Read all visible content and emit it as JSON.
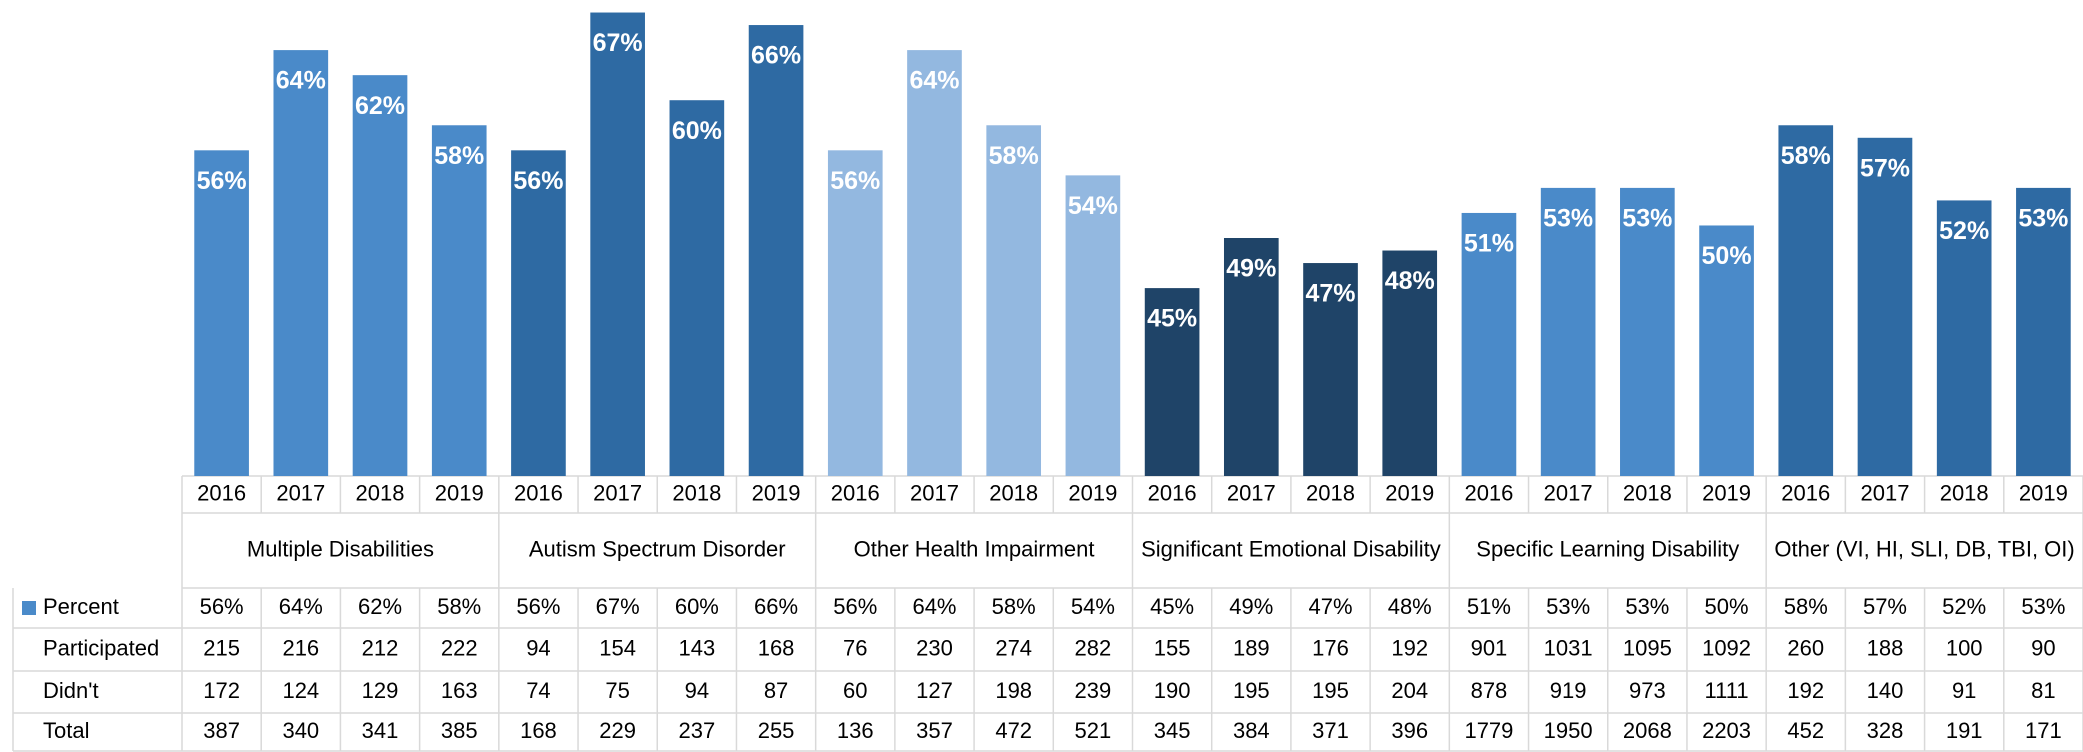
{
  "chart_data": {
    "type": "bar",
    "ylim": [
      30,
      68
    ],
    "groups": [
      {
        "name": "Multiple Disabilities",
        "color": "#4a8ac9"
      },
      {
        "name": "Autism Spectrum Disorder",
        "color": "#2e6aa3"
      },
      {
        "name": "Other Health Impairment",
        "color": "#93b8e0"
      },
      {
        "name": "Significant Emotional Disability",
        "color": "#1f4468"
      },
      {
        "name": "Specific Learning Disability",
        "color": "#4a8ac9"
      },
      {
        "name": "Other (VI, HI, SLI, DB, TBI, OI)",
        "color": "#2e6aa3"
      }
    ],
    "categories": [
      "2016",
      "2017",
      "2018",
      "2019",
      "2016",
      "2017",
      "2018",
      "2019",
      "2016",
      "2017",
      "2018",
      "2019",
      "2016",
      "2017",
      "2018",
      "2019",
      "2016",
      "2017",
      "2018",
      "2019",
      "2016",
      "2017",
      "2018",
      "2019"
    ],
    "series": [
      {
        "name": "Percent",
        "color": "#4a8ac9",
        "values": [
          56,
          64,
          62,
          58,
          56,
          67,
          60,
          66,
          56,
          64,
          58,
          54,
          45,
          49,
          47,
          48,
          51,
          53,
          53,
          50,
          58,
          57,
          52,
          53
        ],
        "value_labels": [
          "56%",
          "64%",
          "62%",
          "58%",
          "56%",
          "67%",
          "60%",
          "66%",
          "56%",
          "64%",
          "58%",
          "54%",
          "45%",
          "49%",
          "47%",
          "48%",
          "51%",
          "53%",
          "53%",
          "50%",
          "58%",
          "57%",
          "52%",
          "53%"
        ]
      }
    ]
  },
  "table": {
    "rows": [
      {
        "label": "Participated",
        "values": [
          215,
          216,
          212,
          222,
          94,
          154,
          143,
          168,
          76,
          230,
          274,
          282,
          155,
          189,
          176,
          192,
          901,
          1031,
          1095,
          1092,
          260,
          188,
          100,
          90
        ]
      },
      {
        "label": "Didn't",
        "values": [
          172,
          124,
          129,
          163,
          74,
          75,
          94,
          87,
          60,
          127,
          198,
          239,
          190,
          195,
          195,
          204,
          878,
          919,
          973,
          1111,
          192,
          140,
          91,
          81
        ]
      },
      {
        "label": "Total",
        "values": [
          387,
          340,
          341,
          385,
          168,
          229,
          237,
          255,
          136,
          357,
          472,
          521,
          345,
          384,
          371,
          396,
          1779,
          1950,
          2068,
          2203,
          452,
          328,
          191,
          171
        ]
      }
    ]
  }
}
